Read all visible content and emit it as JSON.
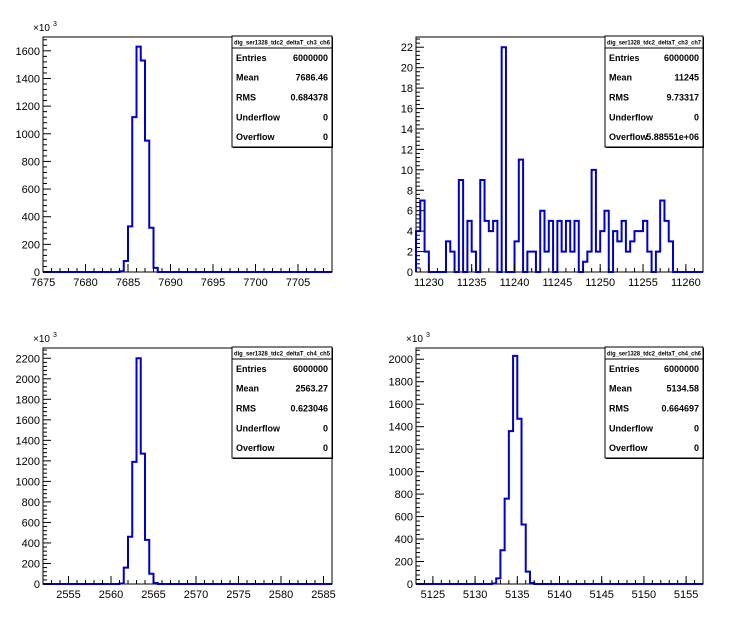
{
  "chart_data": [
    {
      "type": "histogram",
      "y_exponent": "3",
      "xlim": [
        7675,
        7709
      ],
      "ylim": [
        0,
        1700
      ],
      "x_ticks": [
        7675,
        7680,
        7685,
        7690,
        7695,
        7700,
        7705
      ],
      "y_ticks": [
        0,
        200,
        400,
        600,
        800,
        1000,
        1200,
        1400,
        1600
      ],
      "bin_start": 7684,
      "bin_width": 0.5,
      "values": [
        5,
        80,
        330,
        1120,
        1630,
        1530,
        950,
        320,
        30
      ],
      "stats": {
        "title": "dig_ser1328_tdc2_deltaT_ch3_ch6",
        "rows": [
          {
            "label": "Entries",
            "value": "6000000"
          },
          {
            "label": "Mean",
            "value": "7686.46"
          },
          {
            "label": "RMS",
            "value": "0.684378"
          },
          {
            "label": "Underflow",
            "value": "0"
          },
          {
            "label": "Overflow",
            "value": "0"
          }
        ]
      }
    },
    {
      "type": "histogram",
      "y_exponent": "",
      "xlim": [
        11228.5,
        11262
      ],
      "ylim": [
        0,
        23
      ],
      "x_ticks": [
        11230,
        11235,
        11240,
        11245,
        11250,
        11255,
        11260
      ],
      "y_ticks": [
        0,
        2,
        4,
        6,
        8,
        10,
        12,
        14,
        16,
        18,
        20,
        22
      ],
      "bin_start": 11228.5,
      "bin_width": 0.5,
      "values": [
        4,
        7,
        2,
        0,
        0,
        0,
        0,
        3,
        2,
        0,
        9,
        0,
        5,
        2,
        0,
        9,
        5,
        4,
        5,
        0,
        22,
        0,
        0,
        3,
        11,
        0,
        2,
        2,
        0,
        6,
        2,
        5,
        0,
        5,
        2,
        5,
        2,
        5,
        0,
        1,
        2,
        10,
        2,
        4,
        6,
        0,
        4,
        3,
        5,
        2,
        3,
        4,
        4,
        5,
        2,
        0,
        2,
        7,
        5,
        3
      ],
      "stats": {
        "title": "dig_ser1328_tdc2_deltaT_ch3_ch7",
        "rows": [
          {
            "label": "Entries",
            "value": "6000000"
          },
          {
            "label": "Mean",
            "value": "11245"
          },
          {
            "label": "RMS",
            "value": "9.73317"
          },
          {
            "label": "Underflow",
            "value": "0"
          },
          {
            "label": "Overflow",
            "value": "5.88551e+06"
          }
        ]
      }
    },
    {
      "type": "histogram",
      "y_exponent": "3",
      "xlim": [
        2552,
        2586
      ],
      "ylim": [
        0,
        2300
      ],
      "x_ticks": [
        2555,
        2560,
        2565,
        2570,
        2575,
        2580,
        2585
      ],
      "y_ticks": [
        0,
        200,
        400,
        600,
        800,
        1000,
        1200,
        1400,
        1600,
        1800,
        2000,
        2200
      ],
      "bin_start": 2561,
      "bin_width": 0.5,
      "values": [
        5,
        160,
        460,
        1190,
        2200,
        1270,
        430,
        100,
        10
      ],
      "stats": {
        "title": "dig_ser1328_tdc2_deltaT_ch4_ch5",
        "rows": [
          {
            "label": "Entries",
            "value": "6000000"
          },
          {
            "label": "Mean",
            "value": "2563.27"
          },
          {
            "label": "RMS",
            "value": "0.623046"
          },
          {
            "label": "Underflow",
            "value": "0"
          },
          {
            "label": "Overflow",
            "value": "0"
          }
        ]
      }
    },
    {
      "type": "histogram",
      "y_exponent": "3",
      "xlim": [
        5123,
        5157
      ],
      "ylim": [
        0,
        2100
      ],
      "x_ticks": [
        5125,
        5130,
        5135,
        5140,
        5145,
        5150,
        5155
      ],
      "y_ticks": [
        0,
        200,
        400,
        600,
        800,
        1000,
        1200,
        1400,
        1600,
        1800,
        2000
      ],
      "bin_start": 5132,
      "bin_width": 0.5,
      "values": [
        5,
        50,
        300,
        760,
        1360,
        2030,
        1470,
        530,
        110,
        10
      ],
      "stats": {
        "title": "dig_ser1328_tdc2_deltaT_ch4_ch6",
        "rows": [
          {
            "label": "Entries",
            "value": "6000000"
          },
          {
            "label": "Mean",
            "value": "5134.58"
          },
          {
            "label": "RMS",
            "value": "0.664697"
          },
          {
            "label": "Underflow",
            "value": "0"
          },
          {
            "label": "Overflow",
            "value": "0"
          }
        ]
      }
    }
  ]
}
